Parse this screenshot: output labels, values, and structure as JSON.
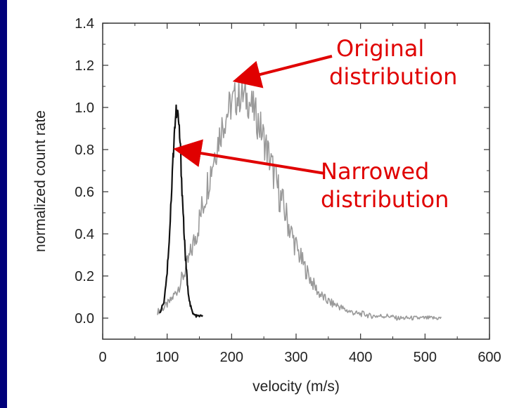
{
  "chart_data": {
    "type": "line",
    "xlabel": "velocity (m/s)",
    "ylabel": "normalized count rate",
    "xlim": [
      0,
      600
    ],
    "ylim": [
      -0.1,
      1.4
    ],
    "xticks": [
      "0",
      "100",
      "200",
      "300",
      "400",
      "500",
      "600"
    ],
    "yticks": [
      "0.0",
      "0.2",
      "0.4",
      "0.6",
      "0.8",
      "1.0",
      "1.2",
      "1.4"
    ],
    "grid": false,
    "series": [
      {
        "color": "#9a9a9a",
        "x": [
          85,
          95,
          105,
          115,
          125,
          135,
          145,
          155,
          165,
          175,
          185,
          195,
          205,
          215,
          225,
          235,
          245,
          255,
          265,
          275,
          285,
          295,
          305,
          315,
          325,
          335,
          345,
          355,
          365,
          375,
          385,
          395,
          405,
          415,
          425,
          435,
          445,
          455,
          465,
          475,
          485,
          495,
          505,
          515,
          525
        ],
        "y": [
          0.03,
          0.05,
          0.08,
          0.13,
          0.2,
          0.29,
          0.4,
          0.53,
          0.67,
          0.8,
          0.91,
          0.99,
          1.04,
          1.06,
          1.04,
          0.98,
          0.9,
          0.8,
          0.69,
          0.58,
          0.48,
          0.38,
          0.3,
          0.23,
          0.17,
          0.12,
          0.09,
          0.07,
          0.06,
          0.04,
          0.03,
          0.02,
          0.02,
          0.01,
          0.01,
          0.01,
          0.01,
          0.0,
          0.0,
          0.0,
          0.0,
          0.0,
          0.0,
          0.0,
          0.0
        ]
      },
      {
        "color": "#111111",
        "x": [
          88,
          95,
          100,
          104,
          108,
          111,
          114,
          117,
          120,
          123,
          126,
          129,
          132,
          136,
          140,
          145,
          150,
          155
        ],
        "y": [
          0.02,
          0.08,
          0.22,
          0.42,
          0.68,
          0.88,
          0.98,
          0.96,
          0.84,
          0.62,
          0.42,
          0.26,
          0.14,
          0.06,
          0.02,
          0.01,
          0.01,
          0.01
        ]
      }
    ],
    "annotations": [
      {
        "lines": [
          "Original",
          "distribution"
        ],
        "arrow_to": [
          210,
          1.13
        ]
      },
      {
        "lines": [
          "Narrowed",
          "distribution"
        ],
        "arrow_to": [
          118,
          0.8
        ]
      }
    ]
  }
}
